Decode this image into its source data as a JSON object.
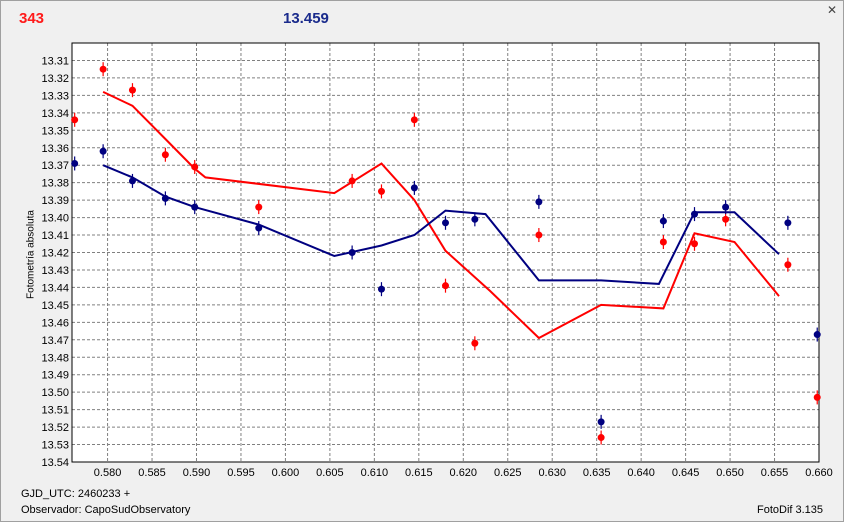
{
  "header": {
    "star_id": "343",
    "magnitude": "13.459"
  },
  "footer": {
    "gjd": "GJD_UTC: 2460233 +",
    "observer": "Observador: CapoSudObservatory",
    "version": "FotoDif 3.135"
  },
  "colors": {
    "red": "#ff0000",
    "blue": "#000080",
    "grid": "#808080"
  },
  "chart_data": {
    "type": "scatter",
    "ylabel": "Fotometría absoluta",
    "xlim": [
      0.576,
      0.66
    ],
    "ylim": [
      13.3,
      13.54
    ],
    "y_inverted": true,
    "grid": true,
    "x_ticks": [
      "0.580",
      "0.585",
      "0.590",
      "0.595",
      "0.600",
      "0.605",
      "0.610",
      "0.615",
      "0.620",
      "0.625",
      "0.630",
      "0.635",
      "0.640",
      "0.645",
      "0.650",
      "0.655",
      "0.660"
    ],
    "y_ticks": [
      "13.31",
      "13.32",
      "13.33",
      "13.34",
      "13.35",
      "13.36",
      "13.37",
      "13.38",
      "13.39",
      "13.40",
      "13.41",
      "13.42",
      "13.43",
      "13.44",
      "13.45",
      "13.46",
      "13.47",
      "13.48",
      "13.49",
      "13.50",
      "13.51",
      "13.52",
      "13.53",
      "13.54"
    ],
    "series": [
      {
        "color": "#ff0000",
        "points": [
          [
            0.5763,
            13.344
          ],
          [
            0.5795,
            13.315
          ],
          [
            0.5828,
            13.327
          ],
          [
            0.5865,
            13.364
          ],
          [
            0.5898,
            13.371
          ],
          [
            0.597,
            13.394
          ],
          [
            0.6075,
            13.379
          ],
          [
            0.6108,
            13.385
          ],
          [
            0.6145,
            13.344
          ],
          [
            0.618,
            13.439
          ],
          [
            0.6213,
            13.472
          ],
          [
            0.6285,
            13.41
          ],
          [
            0.6355,
            13.526
          ],
          [
            0.6425,
            13.414
          ],
          [
            0.646,
            13.415
          ],
          [
            0.6495,
            13.401
          ],
          [
            0.6565,
            13.427
          ],
          [
            0.6598,
            13.503
          ]
        ],
        "line": [
          [
            0.5795,
            13.328
          ],
          [
            0.5828,
            13.336
          ],
          [
            0.5865,
            13.355
          ],
          [
            0.5898,
            13.372
          ],
          [
            0.591,
            13.377
          ],
          [
            0.6055,
            13.386
          ],
          [
            0.6108,
            13.369
          ],
          [
            0.6145,
            13.39
          ],
          [
            0.618,
            13.419
          ],
          [
            0.623,
            13.442
          ],
          [
            0.6285,
            13.469
          ],
          [
            0.6355,
            13.45
          ],
          [
            0.6425,
            13.452
          ],
          [
            0.646,
            13.409
          ],
          [
            0.6505,
            13.414
          ],
          [
            0.6555,
            13.445
          ]
        ]
      },
      {
        "color": "#000080",
        "points": [
          [
            0.5763,
            13.369
          ],
          [
            0.5795,
            13.362
          ],
          [
            0.5828,
            13.379
          ],
          [
            0.5865,
            13.389
          ],
          [
            0.5898,
            13.394
          ],
          [
            0.597,
            13.406
          ],
          [
            0.6075,
            13.42
          ],
          [
            0.6108,
            13.441
          ],
          [
            0.6145,
            13.383
          ],
          [
            0.618,
            13.403
          ],
          [
            0.6213,
            13.401
          ],
          [
            0.6285,
            13.391
          ],
          [
            0.6355,
            13.517
          ],
          [
            0.6425,
            13.402
          ],
          [
            0.646,
            13.398
          ],
          [
            0.6495,
            13.394
          ],
          [
            0.6565,
            13.403
          ],
          [
            0.6598,
            13.467
          ]
        ],
        "line": [
          [
            0.5795,
            13.37
          ],
          [
            0.5828,
            13.377
          ],
          [
            0.5865,
            13.388
          ],
          [
            0.5898,
            13.394
          ],
          [
            0.597,
            13.404
          ],
          [
            0.6055,
            13.422
          ],
          [
            0.6108,
            13.416
          ],
          [
            0.6145,
            13.41
          ],
          [
            0.618,
            13.396
          ],
          [
            0.6225,
            13.398
          ],
          [
            0.6285,
            13.436
          ],
          [
            0.6355,
            13.436
          ],
          [
            0.642,
            13.438
          ],
          [
            0.646,
            13.397
          ],
          [
            0.6505,
            13.397
          ],
          [
            0.6555,
            13.421
          ]
        ]
      }
    ]
  }
}
